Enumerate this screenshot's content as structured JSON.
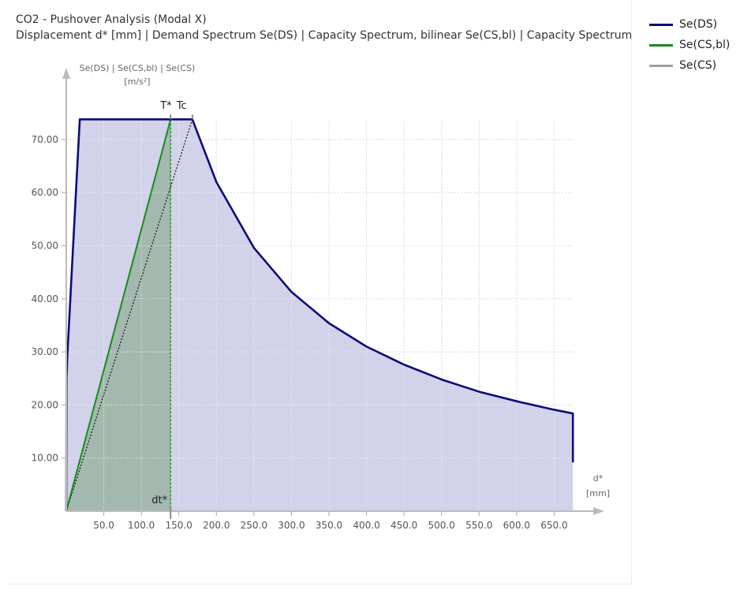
{
  "chart_data": {
    "type": "area",
    "title": "CO2 - Pushover Analysis (Modal X)",
    "subtitle": "Displacement d* [mm] | Demand Spectrum Se(DS) | Capacity Spectrum, bilinear Se(CS,bl) | Capacity Spectrum Se(",
    "ylabel_line1": "Se(DS) | Se(CS,bl) | Se(CS)",
    "ylabel_line2": "[m/s²]",
    "xlabel_line1": "d*",
    "xlabel_line2": "[mm]",
    "xlim": [
      0,
      700
    ],
    "ylim": [
      0,
      80
    ],
    "xticks": [
      "50.0",
      "100.0",
      "150.0",
      "200.0",
      "250.0",
      "300.0",
      "350.0",
      "400.0",
      "450.0",
      "500.0",
      "550.0",
      "600.0",
      "650.0"
    ],
    "xtick_values": [
      50,
      100,
      150,
      200,
      250,
      300,
      350,
      400,
      450,
      500,
      550,
      600,
      650
    ],
    "yticks": [
      "10.00",
      "20.00",
      "30.00",
      "40.00",
      "50.00",
      "60.00",
      "70.00"
    ],
    "ytick_values": [
      10,
      20,
      30,
      40,
      50,
      60,
      70
    ],
    "grid": true,
    "legend_position": "right",
    "annotations": {
      "t_star": "T*",
      "t_c": "Tc",
      "d_t_star": "dt*"
    },
    "markers": {
      "t_star_x": 139,
      "t_c_x": 168,
      "top_y": 73.8
    },
    "series": [
      {
        "name": "Se(DS)",
        "color": "#0d0d78",
        "fill": "#cdcde8",
        "x": [
          0,
          0.3,
          1.5,
          18,
          168,
          200,
          250,
          300,
          350,
          400,
          450,
          500,
          550,
          600,
          650,
          675,
          675
        ],
        "y": [
          0,
          25,
          29.5,
          73.8,
          73.8,
          62.0,
          49.6,
          41.3,
          35.4,
          31.0,
          27.6,
          24.8,
          22.5,
          20.7,
          19.1,
          18.4,
          9.2
        ]
      },
      {
        "name": "Se(CS,bl)",
        "color": "#1a8a1a",
        "fill": "#a3b8af",
        "x": [
          0,
          139,
          139
        ],
        "y": [
          0,
          73.8,
          0
        ]
      },
      {
        "name": "Se(CS)",
        "color": "#a0a0a0",
        "x": [],
        "y": []
      }
    ],
    "demand_line": {
      "x": [
        0,
        168
      ],
      "y": [
        0,
        73.8
      ]
    }
  }
}
